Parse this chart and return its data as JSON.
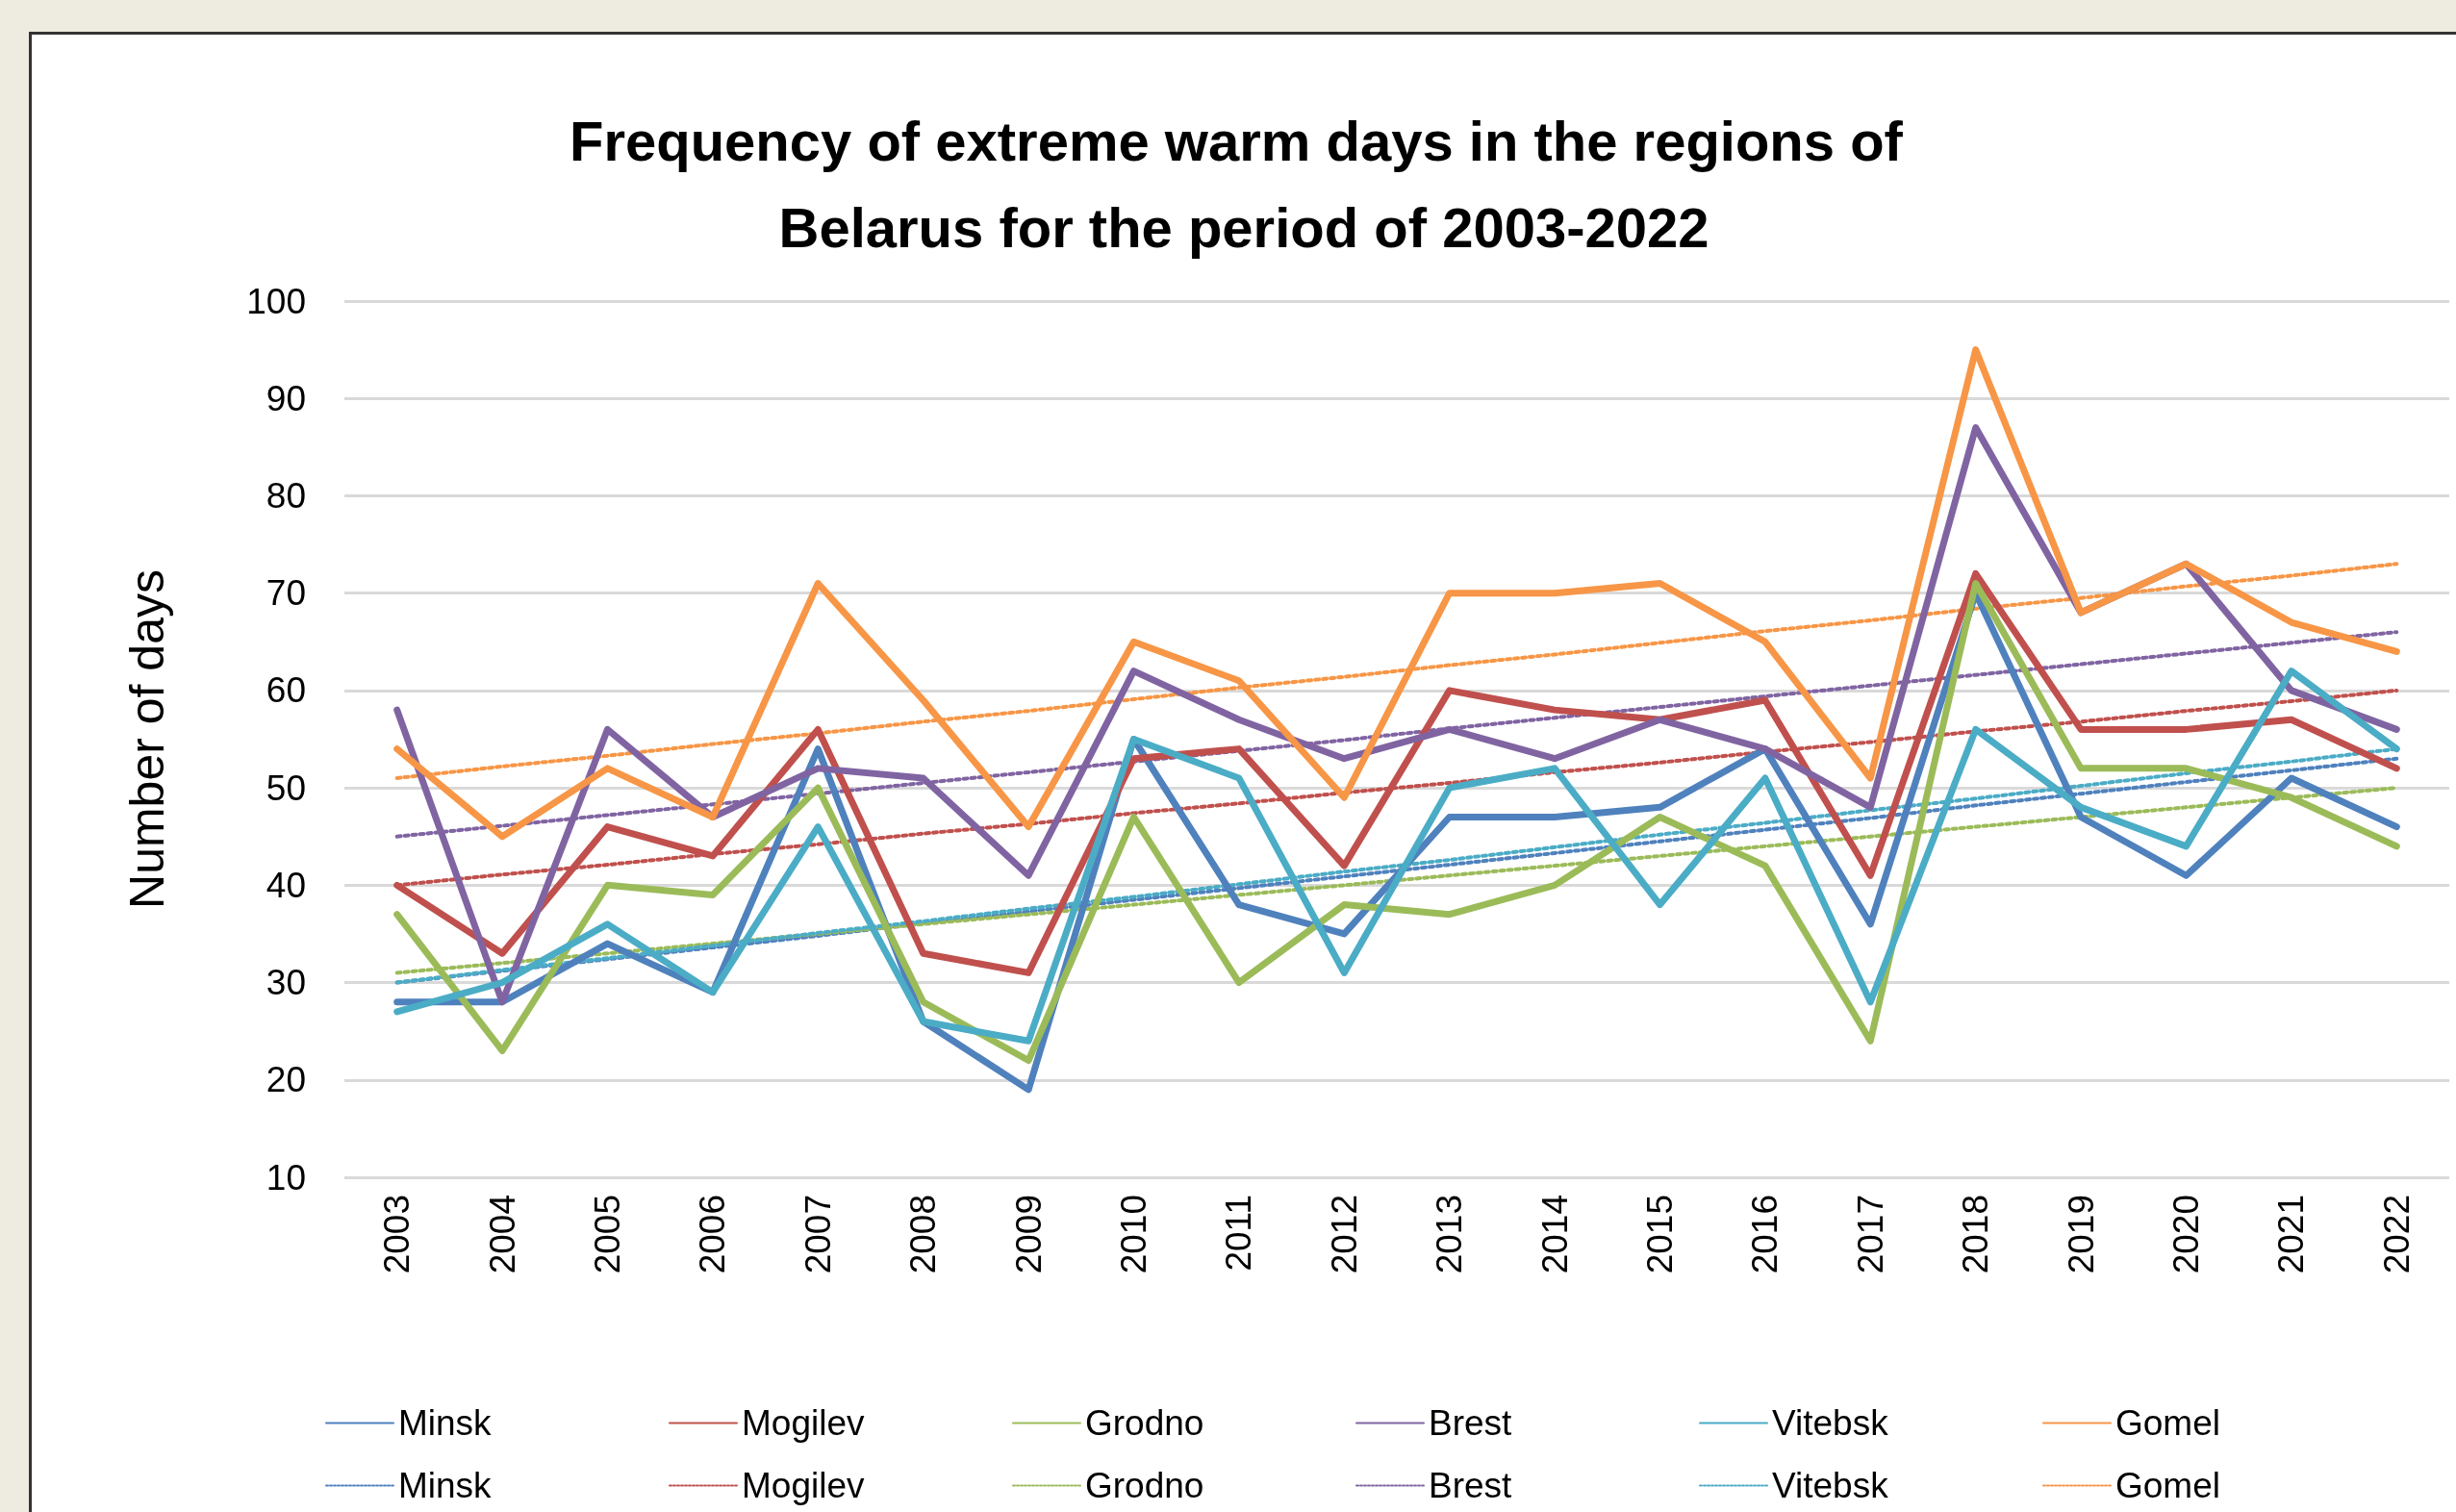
{
  "chart_data": {
    "type": "line",
    "title": "Frequency of extreme warm days in the regions of Belarus for the period of 2003-2022",
    "ylabel": "Number of days",
    "categories": [
      "2003",
      "2004",
      "2005",
      "2006",
      "2007",
      "2008",
      "2009",
      "2010",
      "2011",
      "2012",
      "2013",
      "2014",
      "2015",
      "2016",
      "2017",
      "2018",
      "2019",
      "2020",
      "2021",
      "2022"
    ],
    "ylim": [
      10,
      100
    ],
    "yticks": [
      10,
      20,
      30,
      40,
      50,
      60,
      70,
      80,
      90,
      100
    ],
    "grid": "y",
    "legend": "bottom",
    "marker": "none",
    "series": [
      {
        "name": "Minsk",
        "color": "#4f81bd",
        "line_style": "solid",
        "values": [
          28,
          28,
          34,
          29,
          54,
          26,
          19,
          55,
          38,
          35,
          47,
          47,
          48,
          54,
          36,
          70,
          47,
          41,
          51,
          46
        ]
      },
      {
        "name": "Mogilev",
        "color": "#c0504d",
        "line_style": "solid",
        "values": [
          40,
          33,
          46,
          43,
          56,
          33,
          31,
          53,
          54,
          42,
          60,
          58,
          57,
          59,
          41,
          72,
          56,
          56,
          57,
          52
        ]
      },
      {
        "name": "Grodno",
        "color": "#9bbb59",
        "line_style": "solid",
        "values": [
          37,
          23,
          40,
          39,
          50,
          28,
          22,
          47,
          30,
          38,
          37,
          40,
          47,
          42,
          24,
          71,
          52,
          52,
          49,
          44
        ]
      },
      {
        "name": "Brest",
        "color": "#8064a2",
        "line_style": "solid",
        "values": [
          58,
          28,
          56,
          47,
          52,
          51,
          41,
          62,
          57,
          53,
          56,
          53,
          57,
          54,
          48,
          87,
          68,
          73,
          60,
          56
        ]
      },
      {
        "name": "Vitebsk",
        "color": "#4bacc6",
        "line_style": "solid",
        "values": [
          27,
          30,
          36,
          29,
          46,
          26,
          24,
          55,
          51,
          31,
          50,
          52,
          38,
          51,
          28,
          56,
          48,
          44,
          62,
          54
        ]
      },
      {
        "name": "Gomel",
        "color": "#f79646",
        "line_style": "solid",
        "values": [
          54,
          45,
          52,
          47,
          71,
          59,
          46,
          65,
          61,
          49,
          70,
          70,
          71,
          65,
          51,
          95,
          68,
          73,
          67,
          64
        ]
      },
      {
        "name": "Minsk",
        "color": "#4f81bd",
        "line_style": "dotted",
        "values": [
          30,
          31.2,
          32.4,
          33.6,
          34.8,
          36.1,
          37.3,
          38.5,
          39.7,
          40.9,
          42.1,
          43.3,
          44.5,
          45.7,
          46.9,
          48.2,
          49.4,
          50.6,
          51.8,
          53
        ]
      },
      {
        "name": "Mogilev",
        "color": "#c0504d",
        "line_style": "dotted",
        "values": [
          40,
          41.1,
          42.1,
          43.2,
          44.2,
          45.3,
          46.3,
          47.4,
          48.4,
          49.5,
          50.5,
          51.6,
          52.6,
          53.7,
          54.7,
          55.8,
          56.8,
          57.9,
          58.9,
          60
        ]
      },
      {
        "name": "Grodno",
        "color": "#9bbb59",
        "line_style": "dotted",
        "values": [
          31,
          32,
          33,
          34,
          35,
          36,
          37,
          38,
          39,
          40,
          41,
          42,
          43,
          44,
          45,
          46,
          47,
          48,
          49,
          50
        ]
      },
      {
        "name": "Brest",
        "color": "#8064a2",
        "line_style": "dotted",
        "values": [
          45,
          46.1,
          47.2,
          48.3,
          49.4,
          50.5,
          51.6,
          52.7,
          53.8,
          54.9,
          56.1,
          57.2,
          58.3,
          59.4,
          60.5,
          61.6,
          62.7,
          63.8,
          64.9,
          66
        ]
      },
      {
        "name": "Vitebsk",
        "color": "#4bacc6",
        "line_style": "dotted",
        "values": [
          30,
          31.3,
          32.5,
          33.8,
          35.1,
          36.3,
          37.6,
          38.8,
          40.1,
          41.4,
          42.6,
          43.9,
          45.2,
          46.4,
          47.7,
          48.9,
          50.2,
          51.5,
          52.7,
          54
        ]
      },
      {
        "name": "Gomel",
        "color": "#f79646",
        "line_style": "dotted",
        "values": [
          51,
          52.2,
          53.3,
          54.5,
          55.6,
          56.8,
          57.9,
          59.1,
          60.3,
          61.4,
          62.6,
          63.7,
          64.9,
          66.1,
          67.2,
          68.4,
          69.5,
          70.7,
          71.8,
          73
        ]
      }
    ]
  }
}
